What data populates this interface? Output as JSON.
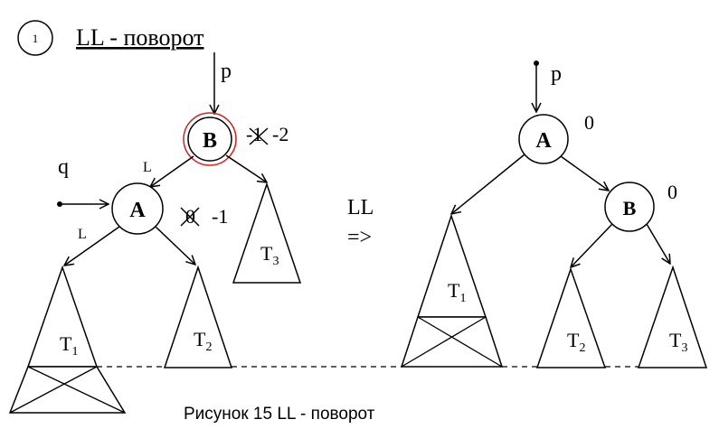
{
  "header": {
    "step_number": "1",
    "title": "LL - поворот"
  },
  "left_tree": {
    "pointer_p": "p",
    "pointer_q": "q",
    "node_b": {
      "label": "B",
      "balance_old": "-1",
      "balance_new": "-2"
    },
    "node_a": {
      "label": "A",
      "balance_old": "0",
      "balance_new": "-1"
    },
    "edge_b_a_label": "L",
    "edge_a_t1_label": "L",
    "subtree_t1": {
      "name": "T",
      "sub": "1"
    },
    "subtree_t2": {
      "name": "T",
      "sub": "2"
    },
    "subtree_t3": {
      "name": "T",
      "sub": "3"
    }
  },
  "transform": {
    "label": "LL",
    "arrow": "=>"
  },
  "right_tree": {
    "pointer_p": "p",
    "node_a": {
      "label": "A",
      "balance": "0"
    },
    "node_b": {
      "label": "B",
      "balance": "0"
    },
    "subtree_t1": {
      "name": "T",
      "sub": "1"
    },
    "subtree_t2": {
      "name": "T",
      "sub": "2"
    },
    "subtree_t3": {
      "name": "T",
      "sub": "3"
    }
  },
  "caption": "Рисунок 15 LL - поворот",
  "colors": {
    "ink": "#000000",
    "highlight_ring": "#d42020"
  }
}
